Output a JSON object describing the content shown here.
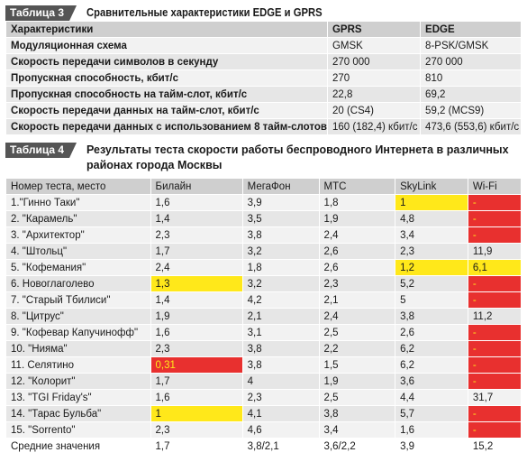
{
  "table3": {
    "tag": "Таблица 3",
    "title": "Сравнительные характеристики EDGE и GPRS",
    "header": [
      "Характеристики",
      "GPRS",
      "EDGE"
    ],
    "rows": [
      [
        "Модуляционная схема",
        "GMSK",
        "8-PSK/GMSK"
      ],
      [
        "Скорость передачи символов в секунду",
        "270 000",
        "270 000"
      ],
      [
        "Пропускная способность, кбит/с",
        "270",
        "810"
      ],
      [
        "Пропускная способность на тайм-слот, кбит/с",
        "22,8",
        "69,2"
      ],
      [
        "Скорость передачи данных на тайм-слот, кбит/с",
        "20 (CS4)",
        "59,2 (MCS9)"
      ],
      [
        "Скорость передачи данных с использованием 8 тайм-слотов",
        "160 (182,4) кбит/с",
        "473,6 (553,6) кбит/с"
      ]
    ]
  },
  "table4": {
    "tag": "Таблица 4",
    "title": "Результаты теста скорости работы беспроводного Интернета в различных районах города Москвы",
    "header": [
      "Номер теста, место",
      "Билайн",
      "МегаФон",
      "МТС",
      "SkyLink",
      "Wi-Fi"
    ],
    "rows": [
      [
        "1.\"Гинно Таки\"",
        "1,6",
        "3,9",
        "1,8",
        "1",
        "-"
      ],
      [
        "2. \"Карамель\"",
        "1,4",
        "3,5",
        "1,9",
        "4,8",
        "-"
      ],
      [
        "3. \"Архитектор\"",
        "2,3",
        "3,8",
        "2,4",
        "3,4",
        "-"
      ],
      [
        "4. \"Штольц\"",
        "1,7",
        "3,2",
        "2,6",
        "2,3",
        "11,9"
      ],
      [
        "5. \"Кофемания\"",
        "2,4",
        "1,8",
        "2,6",
        "1,2",
        "6,1"
      ],
      [
        "6. Новоглаголево",
        "1,3",
        "3,2",
        "2,3",
        "5,2",
        "-"
      ],
      [
        "7. \"Старый Тбилиси\"",
        "1,4",
        "4,2",
        "2,1",
        "5",
        "-"
      ],
      [
        "8. \"Цитрус\"",
        "1,9",
        "2,1",
        "2,4",
        "3,8",
        "11,2"
      ],
      [
        "9. \"Кофевар Капучинофф\"",
        "1,6",
        "3,1",
        "2,5",
        "2,6",
        "-"
      ],
      [
        "10. \"Нияма\"",
        "2,3",
        "3,8",
        "2,2",
        "6,2",
        "-"
      ],
      [
        "11. Селятино",
        "0,31",
        "3,8",
        "1,5",
        "6,2",
        "-"
      ],
      [
        "12. \"Колорит\"",
        "1,7",
        "4",
        "1,9",
        "3,6",
        "-"
      ],
      [
        "13. \"TGI Friday's\"",
        "1,6",
        "2,3",
        "2,5",
        "4,4",
        "31,7"
      ],
      [
        "14. \"Тарас Бульба\"",
        "1",
        "4,1",
        "3,8",
        "5,7",
        "-"
      ],
      [
        "15. \"Sorrento\"",
        "2,3",
        "4,6",
        "3,4",
        "1,6",
        "-"
      ],
      [
        "Средние значения",
        "1,7",
        "3,8/2,1",
        "3,6/2,2",
        "3,9",
        "15,2"
      ]
    ],
    "highlights": {
      "yellow": [
        [
          0,
          4
        ],
        [
          4,
          4
        ],
        [
          4,
          5
        ],
        [
          5,
          1
        ],
        [
          13,
          1
        ]
      ],
      "red": [
        [
          0,
          5
        ],
        [
          1,
          5
        ],
        [
          2,
          5
        ],
        [
          5,
          5
        ],
        [
          6,
          5
        ],
        [
          8,
          5
        ],
        [
          9,
          5
        ],
        [
          10,
          1
        ],
        [
          10,
          5
        ],
        [
          11,
          5
        ],
        [
          13,
          5
        ],
        [
          14,
          5
        ]
      ]
    },
    "colors": {
      "yellow": "#ffe81a",
      "red": "#e8302f",
      "header": "#cfcfcf",
      "row_light": "#f2f2f2",
      "row_dark": "#e6e6e6",
      "tag": "#555555"
    }
  }
}
